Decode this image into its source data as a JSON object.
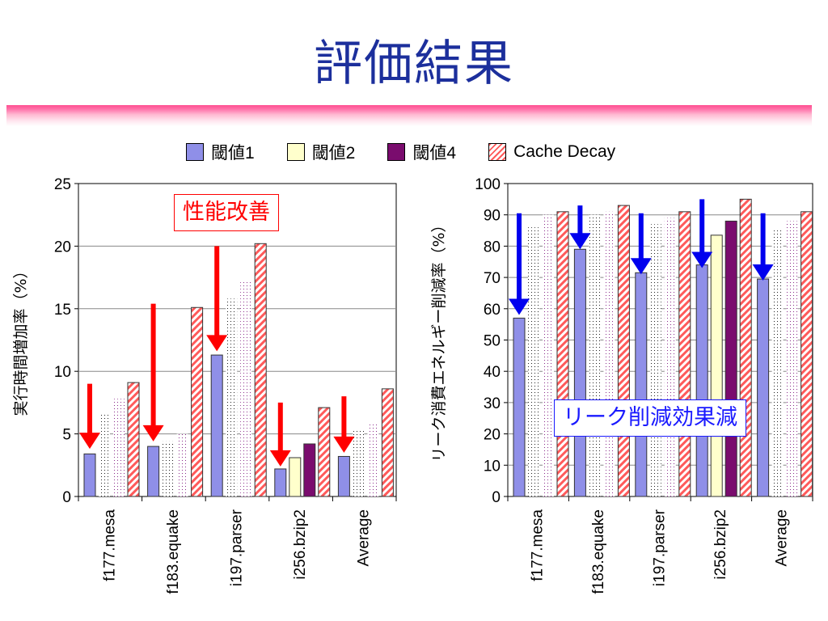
{
  "slide": {
    "title": "評価結果"
  },
  "legend": [
    {
      "label": "閾値1",
      "color": "#8f8fe8",
      "pattern": "solid"
    },
    {
      "label": "閾値2",
      "color": "#ffffcc",
      "pattern": "solid"
    },
    {
      "label": "閾値4",
      "color": "#7a0c6e",
      "pattern": "solid"
    },
    {
      "label": "Cache Decay",
      "color": "#ff5a5a",
      "pattern": "diagonal-stripes"
    }
  ],
  "annotations": {
    "left_callout": "性能改善",
    "right_callout": "リーク削減効果減",
    "left_arrow_color": "#ff0000",
    "right_arrow_color": "#0000ee",
    "arrow_icon": "down-arrow-icon"
  },
  "chart_data": [
    {
      "type": "bar",
      "ylabel": "実行時間増加率（%）",
      "ylim": [
        0,
        25
      ],
      "yticks": [
        0,
        5,
        10,
        15,
        20,
        25
      ],
      "grid": true,
      "categories": [
        "f177.mesa",
        "f183.equake",
        "i197.parser",
        "i256.bzip2",
        "Average"
      ],
      "series": [
        {
          "name": "閾値1",
          "values": [
            3.4,
            4.0,
            11.3,
            2.2,
            3.2
          ]
        },
        {
          "name": "閾値2",
          "values": [
            6.7,
            4.4,
            15.8,
            3.1,
            5.3
          ]
        },
        {
          "name": "閾値4",
          "values": [
            7.8,
            5.0,
            17.2,
            4.2,
            5.9
          ]
        },
        {
          "name": "Cache Decay",
          "values": [
            9.1,
            15.1,
            20.2,
            7.1,
            8.6
          ]
        }
      ],
      "arrows": [
        {
          "category": "f177.mesa",
          "from": 9.0,
          "to": 3.8
        },
        {
          "category": "f183.equake",
          "from": 15.4,
          "to": 4.4
        },
        {
          "category": "i197.parser",
          "from": 20.0,
          "to": 11.6
        },
        {
          "category": "i256.bzip2",
          "from": 7.5,
          "to": 2.4
        },
        {
          "category": "Average",
          "from": 8.0,
          "to": 3.5
        }
      ]
    },
    {
      "type": "bar",
      "ylabel": "リーク消費エネルギー削減率（%）",
      "ylim": [
        0,
        100
      ],
      "yticks": [
        0,
        10,
        20,
        30,
        40,
        50,
        60,
        70,
        80,
        90,
        100
      ],
      "grid": true,
      "categories": [
        "f177.mesa",
        "f183.equake",
        "i197.parser",
        "i256.bzip2",
        "Average"
      ],
      "series": [
        {
          "name": "閾値1",
          "values": [
            57,
            79,
            71.5,
            74,
            69.5
          ]
        },
        {
          "name": "閾値2",
          "values": [
            86,
            90,
            87,
            83.5,
            85.5
          ]
        },
        {
          "name": "閾値4",
          "values": [
            90,
            91,
            89,
            88,
            88
          ]
        },
        {
          "name": "Cache Decay",
          "values": [
            91,
            93,
            91,
            95,
            91
          ]
        }
      ],
      "arrows": [
        {
          "category": "f177.mesa",
          "from": 90.5,
          "to": 58
        },
        {
          "category": "f183.equake",
          "from": 93,
          "to": 79
        },
        {
          "category": "i197.parser",
          "from": 90.5,
          "to": 71
        },
        {
          "category": "i256.bzip2",
          "from": 95,
          "to": 73
        },
        {
          "category": "Average",
          "from": 90.5,
          "to": 69
        }
      ]
    }
  ]
}
